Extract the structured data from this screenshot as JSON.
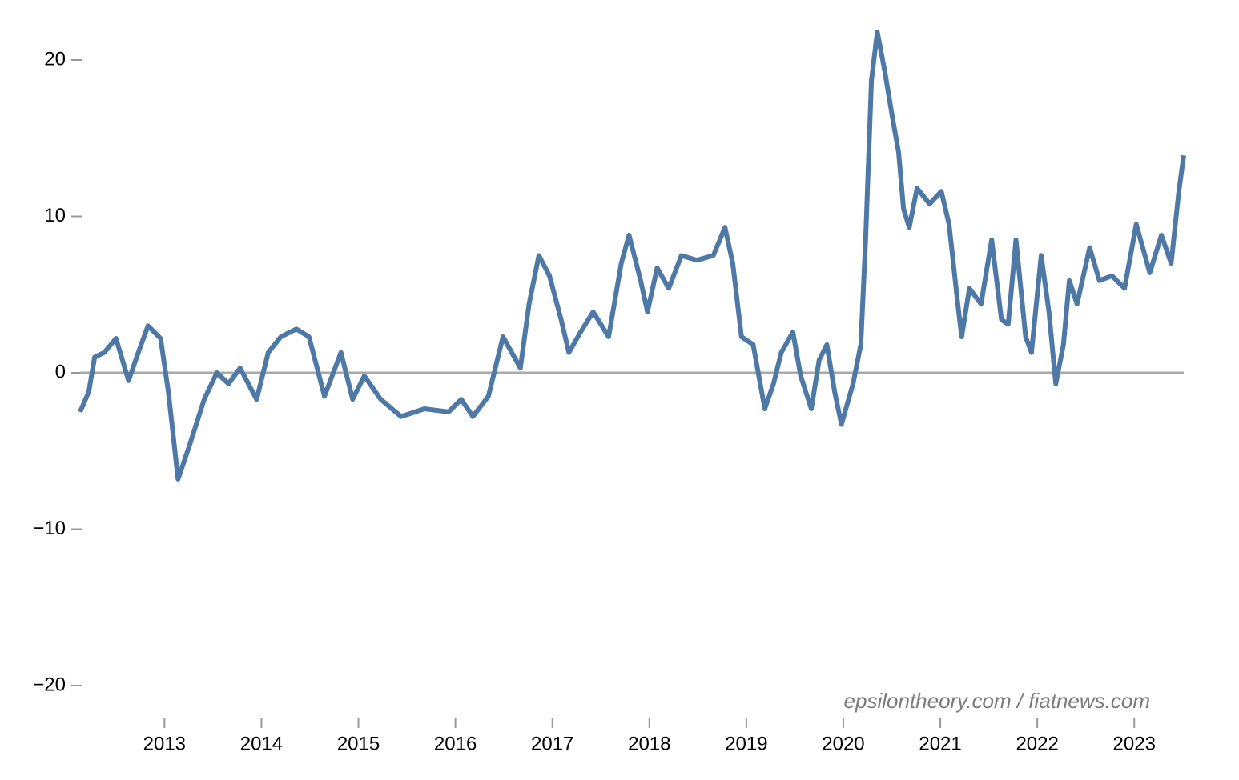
{
  "chart_data": {
    "type": "line",
    "annotation": "epsilontheory.com / fiatnews.com",
    "color": "#4e79a7",
    "x": [
      2012.13,
      2012.22,
      2012.28,
      2012.38,
      2012.5,
      2012.63,
      2012.73,
      2012.83,
      2012.96,
      2013.04,
      2013.14,
      2013.25,
      2013.41,
      2013.54,
      2013.66,
      2013.78,
      2013.95,
      2014.07,
      2014.2,
      2014.36,
      2014.49,
      2014.65,
      2014.82,
      2014.94,
      2015.06,
      2015.23,
      2015.44,
      2015.68,
      2015.93,
      2016.06,
      2016.18,
      2016.34,
      2016.49,
      2016.67,
      2016.76,
      2016.86,
      2016.97,
      2017.09,
      2017.17,
      2017.29,
      2017.42,
      2017.58,
      2017.71,
      2017.79,
      2017.91,
      2017.98,
      2018.08,
      2018.2,
      2018.33,
      2018.49,
      2018.66,
      2018.78,
      2018.86,
      2018.95,
      2019.07,
      2019.19,
      2019.28,
      2019.36,
      2019.48,
      2019.56,
      2019.67,
      2019.75,
      2019.83,
      2019.91,
      2019.98,
      2020.1,
      2020.18,
      2020.23,
      2020.29,
      2020.35,
      2020.43,
      2020.51,
      2020.57,
      2020.62,
      2020.68,
      2020.76,
      2020.89,
      2021.01,
      2021.09,
      2021.18,
      2021.22,
      2021.3,
      2021.42,
      2021.53,
      2021.63,
      2021.7,
      2021.78,
      2021.88,
      2021.94,
      2022.04,
      2022.12,
      2022.19,
      2022.27,
      2022.33,
      2022.41,
      2022.54,
      2022.64,
      2022.77,
      2022.9,
      2023.02,
      2023.16,
      2023.28,
      2023.38,
      2023.46,
      2023.51
    ],
    "values": [
      -2.5,
      -1.2,
      1,
      1.3,
      2.2,
      -0.5,
      1.3,
      3,
      2.2,
      -1.2,
      -6.8,
      -4.8,
      -1.7,
      0,
      -0.7,
      0.3,
      -1.7,
      1.3,
      2.3,
      2.8,
      2.3,
      -1.5,
      1.3,
      -1.7,
      -0.2,
      -1.7,
      -2.8,
      -2.3,
      -2.5,
      -1.7,
      -2.8,
      -1.5,
      2.3,
      0.3,
      4.4,
      7.5,
      6.2,
      3.4,
      1.3,
      2.6,
      3.9,
      2.3,
      7,
      8.8,
      5.9,
      3.9,
      6.7,
      5.4,
      7.5,
      7.2,
      7.5,
      9.3,
      7,
      2.3,
      1.8,
      -2.3,
      -0.7,
      1.3,
      2.6,
      -0.2,
      -2.3,
      0.8,
      1.8,
      -1.2,
      -3.3,
      -0.7,
      1.8,
      8.5,
      18.7,
      21.8,
      19.2,
      16.2,
      14.1,
      10.5,
      9.3,
      11.8,
      10.8,
      11.6,
      9.5,
      4.4,
      2.3,
      5.4,
      4.4,
      8.5,
      3.4,
      3.1,
      8.5,
      2.3,
      1.3,
      7.5,
      3.9,
      -0.7,
      1.8,
      5.9,
      4.4,
      8,
      5.9,
      6.2,
      5.4,
      9.5,
      6.4,
      8.8,
      7,
      11.6,
      13.9
    ],
    "xlim": [
      2012.13,
      2023.51
    ],
    "xticks": [
      2013,
      2014,
      2015,
      2016,
      2017,
      2018,
      2019,
      2020,
      2021,
      2022,
      2023
    ],
    "ylim": [
      -21,
      23
    ],
    "yticks": [
      {
        "value": -20,
        "label": "−20"
      },
      {
        "value": -10,
        "label": "−10"
      },
      0,
      10,
      20
    ]
  }
}
